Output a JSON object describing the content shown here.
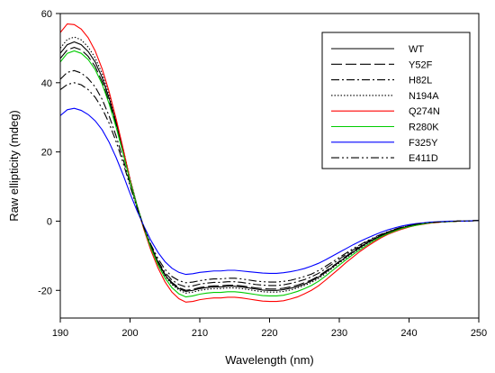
{
  "chart_data": {
    "type": "line",
    "title": "",
    "xlabel": "Wavelength (nm)",
    "ylabel": "Raw ellipticity (mdeg)",
    "xlim": [
      190,
      250
    ],
    "ylim": [
      -28,
      60
    ],
    "xticks": [
      "190",
      "200",
      "210",
      "220",
      "230",
      "240",
      "250"
    ],
    "yticks": [
      "-20",
      "0",
      "20",
      "40",
      "60"
    ],
    "grid": false,
    "legend_position": "top-right",
    "x": [
      190,
      191,
      192,
      193,
      194,
      195,
      196,
      197,
      198,
      199,
      200,
      201,
      202,
      203,
      204,
      205,
      206,
      207,
      208,
      209,
      210,
      211,
      212,
      213,
      214,
      215,
      216,
      217,
      218,
      219,
      220,
      221,
      222,
      223,
      224,
      225,
      226,
      227,
      228,
      229,
      230,
      231,
      232,
      233,
      234,
      235,
      236,
      237,
      238,
      239,
      240,
      241,
      242,
      243,
      244,
      245,
      246,
      247,
      248,
      249,
      250
    ],
    "series": [
      {
        "name": "WT",
        "color": "#000000",
        "dash": "solid",
        "values": [
          48.5,
          51.0,
          51.8,
          51.0,
          49.0,
          46.0,
          41.5,
          35.5,
          28.5,
          20.5,
          12.0,
          4.5,
          -2.0,
          -7.5,
          -12.0,
          -15.5,
          -18.0,
          -19.5,
          -20.3,
          -20.0,
          -19.5,
          -19.2,
          -19.0,
          -19.0,
          -18.8,
          -18.8,
          -19.0,
          -19.3,
          -19.6,
          -19.9,
          -20.0,
          -20.0,
          -19.8,
          -19.4,
          -18.9,
          -18.2,
          -17.3,
          -16.2,
          -14.8,
          -13.3,
          -11.8,
          -10.3,
          -8.9,
          -7.6,
          -6.3,
          -5.2,
          -4.2,
          -3.3,
          -2.6,
          -2.0,
          -1.5,
          -1.1,
          -0.8,
          -0.5,
          -0.3,
          -0.2,
          -0.1,
          0.0,
          0.0,
          0.1,
          0.2
        ]
      },
      {
        "name": "Y52F",
        "color": "#000000",
        "dash": "long-dash",
        "values": [
          47.0,
          49.5,
          50.2,
          49.5,
          47.6,
          44.7,
          40.3,
          34.5,
          27.7,
          20.0,
          11.8,
          4.4,
          -2.0,
          -7.4,
          -11.8,
          -15.3,
          -17.7,
          -19.2,
          -20.0,
          -19.7,
          -19.2,
          -18.9,
          -18.7,
          -18.7,
          -18.5,
          -18.5,
          -18.7,
          -19.0,
          -19.3,
          -19.5,
          -19.6,
          -19.6,
          -19.4,
          -19.0,
          -18.5,
          -17.8,
          -17.0,
          -15.9,
          -14.5,
          -13.1,
          -11.6,
          -10.1,
          -8.7,
          -7.4,
          -6.2,
          -5.1,
          -4.1,
          -3.2,
          -2.5,
          -1.9,
          -1.4,
          -1.0,
          -0.7,
          -0.5,
          -0.3,
          -0.2,
          -0.1,
          0.0,
          0.0,
          0.1,
          0.2
        ]
      },
      {
        "name": "H82L",
        "color": "#000000",
        "dash": "dash-dot",
        "values": [
          41.0,
          43.0,
          43.5,
          42.8,
          41.2,
          38.8,
          35.2,
          30.4,
          24.6,
          18.0,
          10.8,
          4.0,
          -2.0,
          -7.2,
          -11.5,
          -14.8,
          -17.0,
          -18.3,
          -19.0,
          -18.7,
          -18.2,
          -17.9,
          -17.7,
          -17.7,
          -17.5,
          -17.5,
          -17.7,
          -18.0,
          -18.3,
          -18.5,
          -18.6,
          -18.6,
          -18.4,
          -18.0,
          -17.5,
          -16.9,
          -16.1,
          -15.1,
          -13.8,
          -12.4,
          -11.0,
          -9.6,
          -8.3,
          -7.1,
          -5.9,
          -4.9,
          -3.9,
          -3.1,
          -2.4,
          -1.8,
          -1.3,
          -0.9,
          -0.7,
          -0.4,
          -0.3,
          -0.2,
          -0.1,
          0.0,
          0.0,
          0.1,
          0.2
        ]
      },
      {
        "name": "N194A",
        "color": "#000000",
        "dash": "dotted",
        "values": [
          50.0,
          52.5,
          53.2,
          52.4,
          50.3,
          47.2,
          42.6,
          36.4,
          29.2,
          21.0,
          12.3,
          4.6,
          -2.0,
          -7.6,
          -12.2,
          -15.8,
          -18.3,
          -19.9,
          -20.8,
          -20.5,
          -20.0,
          -19.7,
          -19.5,
          -19.5,
          -19.3,
          -19.3,
          -19.5,
          -19.8,
          -20.1,
          -20.4,
          -20.5,
          -20.5,
          -20.3,
          -19.9,
          -19.3,
          -18.6,
          -17.7,
          -16.6,
          -15.2,
          -13.6,
          -12.1,
          -10.6,
          -9.1,
          -7.8,
          -6.5,
          -5.3,
          -4.3,
          -3.4,
          -2.7,
          -2.0,
          -1.5,
          -1.1,
          -0.8,
          -0.5,
          -0.3,
          -0.2,
          -0.1,
          0.0,
          0.0,
          0.1,
          0.2
        ]
      },
      {
        "name": "Q274N",
        "color": "#ff0000",
        "dash": "solid",
        "values": [
          54.5,
          57.0,
          56.8,
          55.5,
          53.0,
          49.2,
          44.0,
          37.4,
          29.6,
          21.0,
          12.0,
          4.2,
          -2.5,
          -8.5,
          -13.5,
          -17.5,
          -20.5,
          -22.4,
          -23.4,
          -23.2,
          -22.7,
          -22.4,
          -22.2,
          -22.2,
          -22.0,
          -22.0,
          -22.2,
          -22.5,
          -22.8,
          -23.1,
          -23.2,
          -23.2,
          -23.0,
          -22.5,
          -21.9,
          -21.0,
          -20.0,
          -18.7,
          -17.1,
          -15.4,
          -13.7,
          -11.9,
          -10.3,
          -8.7,
          -7.3,
          -6.0,
          -4.8,
          -3.8,
          -3.0,
          -2.3,
          -1.7,
          -1.2,
          -0.9,
          -0.6,
          -0.4,
          -0.2,
          -0.1,
          0.0,
          0.0,
          0.1,
          0.2
        ]
      },
      {
        "name": "R280K",
        "color": "#00cc00",
        "dash": "solid",
        "values": [
          46.0,
          48.5,
          49.2,
          48.5,
          46.7,
          43.8,
          39.6,
          33.9,
          27.2,
          19.6,
          11.5,
          4.3,
          -2.1,
          -7.8,
          -12.6,
          -16.4,
          -19.2,
          -21.0,
          -21.9,
          -21.6,
          -21.1,
          -20.8,
          -20.6,
          -20.6,
          -20.4,
          -20.4,
          -20.6,
          -20.9,
          -21.2,
          -21.5,
          -21.6,
          -21.6,
          -21.4,
          -20.9,
          -20.3,
          -19.5,
          -18.6,
          -17.4,
          -15.9,
          -14.3,
          -12.7,
          -11.1,
          -9.6,
          -8.2,
          -6.9,
          -5.6,
          -4.5,
          -3.6,
          -2.8,
          -2.1,
          -1.6,
          -1.2,
          -0.8,
          -0.5,
          -0.3,
          -0.2,
          -0.1,
          0.0,
          0.0,
          0.1,
          0.2
        ]
      },
      {
        "name": "F325Y",
        "color": "#0000ff",
        "dash": "solid",
        "values": [
          30.5,
          32.2,
          32.6,
          32.0,
          30.8,
          29.0,
          26.4,
          22.8,
          18.4,
          13.4,
          8.0,
          3.0,
          -1.5,
          -5.6,
          -9.0,
          -11.7,
          -13.6,
          -14.8,
          -15.4,
          -15.2,
          -14.8,
          -14.6,
          -14.4,
          -14.4,
          -14.2,
          -14.2,
          -14.4,
          -14.6,
          -14.8,
          -15.0,
          -15.1,
          -15.1,
          -14.9,
          -14.6,
          -14.2,
          -13.7,
          -13.0,
          -12.2,
          -11.2,
          -10.1,
          -9.0,
          -7.9,
          -6.8,
          -5.8,
          -4.9,
          -4.0,
          -3.2,
          -2.5,
          -1.9,
          -1.4,
          -1.0,
          -0.7,
          -0.5,
          -0.3,
          -0.2,
          -0.1,
          0.0,
          0.0,
          0.0,
          0.1,
          0.2
        ]
      },
      {
        "name": "E411D",
        "color": "#000000",
        "dash": "dash-dot-dot",
        "values": [
          38.0,
          39.5,
          40.0,
          39.4,
          38.0,
          35.8,
          32.6,
          28.3,
          23.0,
          16.9,
          10.2,
          3.8,
          -1.9,
          -6.8,
          -10.8,
          -13.9,
          -16.0,
          -17.2,
          -17.8,
          -17.6,
          -17.2,
          -16.9,
          -16.7,
          -16.7,
          -16.5,
          -16.5,
          -16.7,
          -17.0,
          -17.3,
          -17.5,
          -17.6,
          -17.6,
          -17.4,
          -17.1,
          -16.6,
          -16.0,
          -15.3,
          -14.3,
          -13.1,
          -11.8,
          -10.5,
          -9.2,
          -7.9,
          -6.8,
          -5.7,
          -4.7,
          -3.8,
          -3.0,
          -2.3,
          -1.7,
          -1.3,
          -0.9,
          -0.6,
          -0.4,
          -0.3,
          -0.2,
          -0.1,
          0.0,
          0.0,
          0.1,
          0.2
        ]
      }
    ]
  }
}
